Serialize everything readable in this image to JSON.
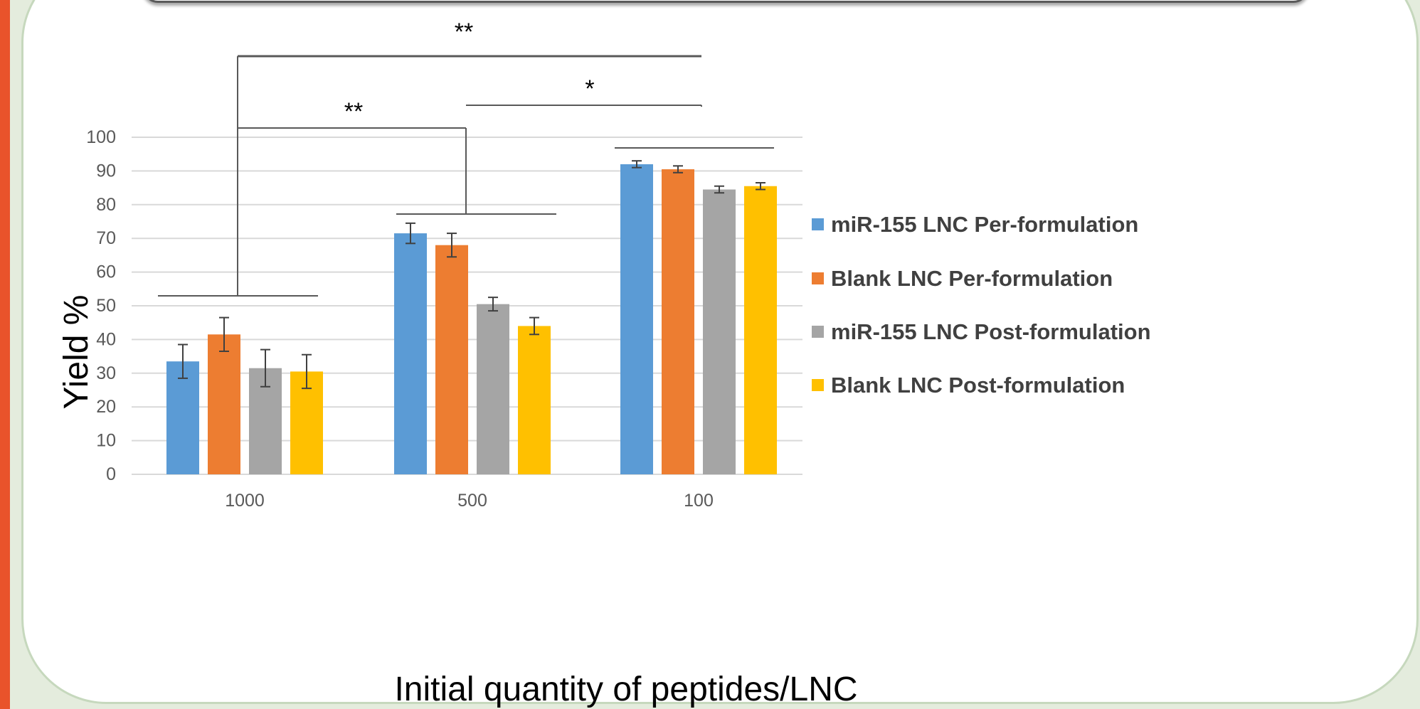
{
  "chart_data": {
    "type": "bar",
    "categories": [
      "1000",
      "500",
      "100"
    ],
    "series": [
      {
        "name": "miR-155 LNC Per-formulation",
        "color": "#5b9bd5",
        "values": [
          33.5,
          71.5,
          92
        ],
        "errors": [
          5,
          3,
          1
        ]
      },
      {
        "name": "Blank LNC Per-formulation",
        "color": "#ed7d31",
        "values": [
          41.5,
          68,
          90.5
        ],
        "errors": [
          5,
          3.5,
          1
        ]
      },
      {
        "name": "miR-155 LNC Post-formulation",
        "color": "#a5a5a5",
        "values": [
          31.5,
          50.5,
          84.5
        ],
        "errors": [
          5.5,
          2,
          1
        ]
      },
      {
        "name": "Blank LNC Post-formulation",
        "color": "#ffc000",
        "values": [
          30.5,
          44,
          85.5
        ],
        "errors": [
          5,
          2.5,
          1
        ]
      }
    ],
    "ylim": [
      0,
      100
    ],
    "yticks": [
      "0",
      "10",
      "20",
      "30",
      "40",
      "50",
      "60",
      "70",
      "80",
      "90",
      "100"
    ],
    "xlabel": "Initial quantity of peptides/LNC",
    "ylabel": "Yield %",
    "legend_position": "right",
    "grid": true,
    "significance": [
      {
        "label": "**",
        "from": "1000",
        "to": "100"
      },
      {
        "label": "**",
        "from": "1000",
        "to": "500"
      },
      {
        "label": "*",
        "from": "500",
        "to": "100"
      }
    ]
  }
}
